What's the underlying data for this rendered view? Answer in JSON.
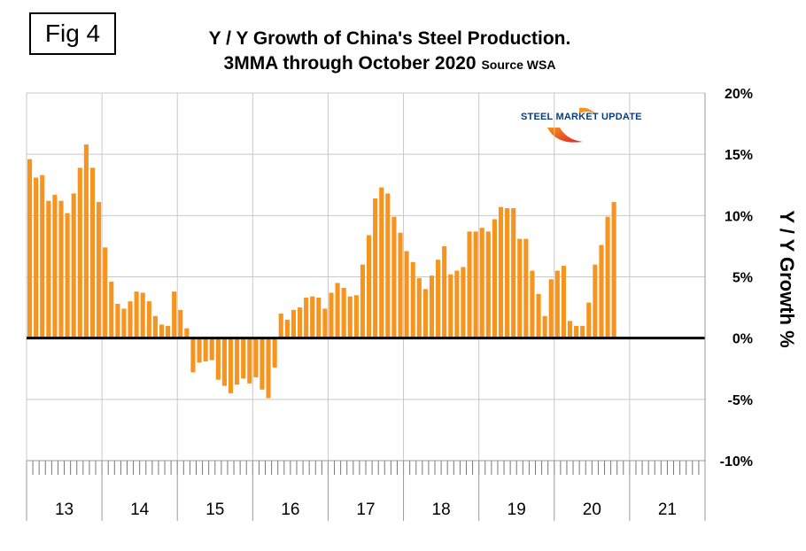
{
  "fig_label": "Fig 4",
  "title_line1": "Y / Y Growth of China's Steel Production.",
  "title_line2": "3MMA through October 2020",
  "title_source": "Source WSA",
  "logo": {
    "brand": "STEEL",
    "rest": "MARKET UPDATE"
  },
  "chart_data": {
    "type": "bar",
    "title": "Y / Y Growth of China's Steel Production. 3MMA through October 2020",
    "ylabel": "Y / Y Growth %",
    "xlabel": "",
    "ylim": [
      -10,
      20
    ],
    "yticks": [
      20,
      15,
      10,
      5,
      0,
      -5,
      -10
    ],
    "ytick_labels": [
      "20%",
      "15%",
      "10%",
      "5%",
      "0%",
      "-5%",
      "-10%"
    ],
    "year_labels": [
      "13",
      "14",
      "15",
      "16",
      "17",
      "18",
      "19",
      "20",
      "21"
    ],
    "months_per_year": 12,
    "grid": true,
    "bar_color": "#f7941d",
    "values": [
      14.6,
      13.1,
      13.3,
      11.2,
      11.7,
      11.2,
      10.2,
      11.8,
      13.9,
      15.8,
      13.9,
      11.1,
      7.4,
      4.6,
      2.8,
      2.4,
      3.0,
      3.8,
      3.7,
      3.0,
      1.8,
      1.1,
      1.0,
      3.8,
      2.3,
      0.8,
      -2.8,
      -2.0,
      -1.9,
      -1.8,
      -3.4,
      -3.9,
      -4.5,
      -3.8,
      -3.3,
      -3.7,
      -3.2,
      -4.2,
      -4.9,
      -2.4,
      2.0,
      1.5,
      2.3,
      2.5,
      3.3,
      3.4,
      3.3,
      2.4,
      3.7,
      4.5,
      4.1,
      3.4,
      3.5,
      6.0,
      8.4,
      11.4,
      12.3,
      11.8,
      9.9,
      8.6,
      7.1,
      6.2,
      4.9,
      4.0,
      5.1,
      6.4,
      7.5,
      5.2,
      5.5,
      5.8,
      8.7,
      8.7,
      9.0,
      8.7,
      9.7,
      10.7,
      10.6,
      10.6,
      8.1,
      8.1,
      5.5,
      3.6,
      1.8,
      4.8,
      5.5,
      5.9,
      1.4,
      1.0,
      1.0,
      2.9,
      6.0,
      7.6,
      9.9,
      11.1
    ]
  }
}
